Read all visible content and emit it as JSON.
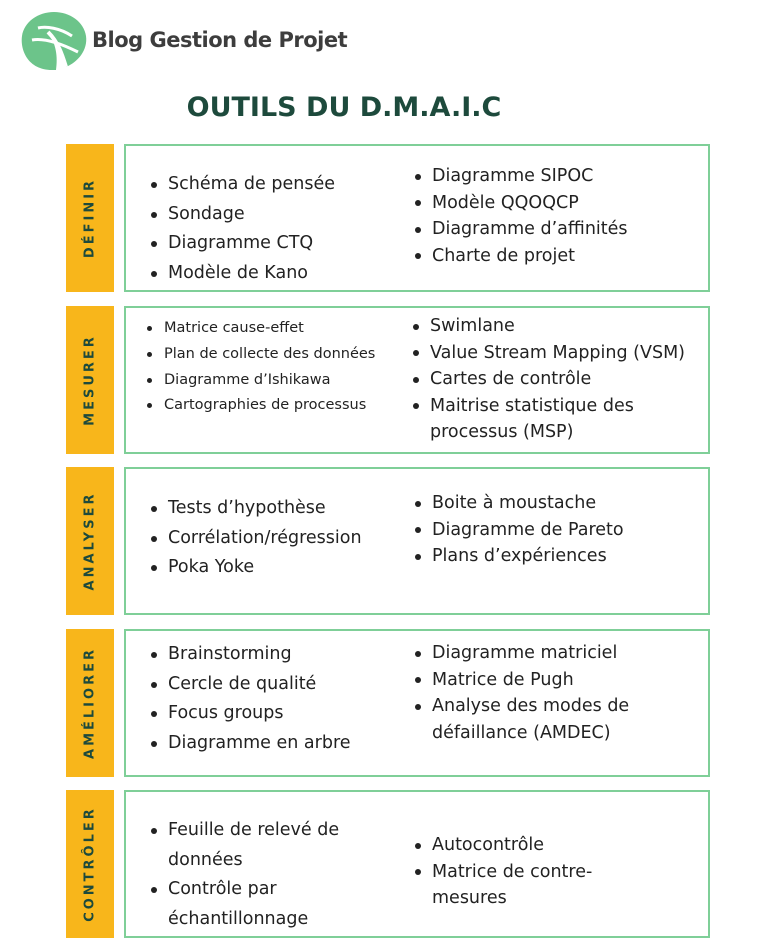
{
  "header": {
    "brand": "Blog Gestion de Projet",
    "title": "OUTILS DU D.M.A.I.C"
  },
  "colors": {
    "accent": "#f8b61b",
    "dark_green": "#1d4a3c",
    "border_green": "#7fcf98",
    "logo_green": "#6cc48a"
  },
  "logo_icon": "leaf-logo-icon",
  "phases": {
    "definir": {
      "label": "DÉFINIR",
      "left": [
        "Schéma de pensée",
        "Sondage",
        "Diagramme CTQ",
        "Modèle de Kano"
      ],
      "right": [
        "Diagramme SIPOC",
        "Modèle QQOQCP",
        "Diagramme d’affinités",
        "Charte de projet"
      ]
    },
    "mesurer": {
      "label": "MESURER",
      "left": [
        "Matrice cause-effet",
        "Plan de collecte des données",
        "Diagramme d’Ishikawa",
        "Cartographies de processus"
      ],
      "right": [
        "Swimlane",
        "Value Stream Mapping (VSM)",
        "Cartes de contrôle",
        "Maitrise statistique des processus (MSP)"
      ]
    },
    "analyser": {
      "label": "ANALYSER",
      "left": [
        "Tests d’hypothèse",
        "Corrélation/régression",
        "Poka Yoke"
      ],
      "right": [
        "Boite à moustache",
        "Diagramme de Pareto",
        "Plans d’expériences"
      ]
    },
    "ameliorer": {
      "label": "AMÉLIORER",
      "left": [
        "Brainstorming",
        "Cercle de qualité",
        "Focus groups",
        "Diagramme en arbre"
      ],
      "right": [
        "Diagramme matriciel",
        "Matrice de Pugh",
        "Analyse des modes de défaillance (AMDEC)"
      ]
    },
    "controler": {
      "label": "CONTRÔLER",
      "left": [
        "Feuille de relevé de données",
        "Contrôle par échantillonnage"
      ],
      "right": [
        "Autocontrôle",
        "Matrice de contre-mesures"
      ]
    }
  }
}
